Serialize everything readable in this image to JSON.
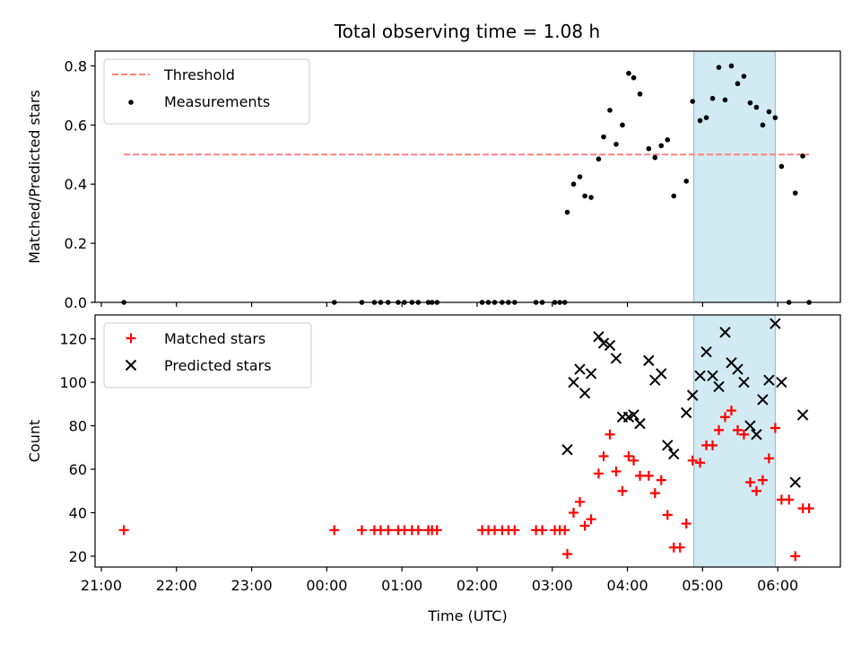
{
  "figure": {
    "title": "Total observing time = 1.08 h"
  },
  "chart_data": [
    {
      "type": "scatter",
      "ylabel": "Matched/Predicted stars",
      "ylim": [
        0,
        0.85
      ],
      "yticks": [
        "0.0",
        "0.2",
        "0.4",
        "0.6",
        "0.8"
      ],
      "ytick_values": [
        0,
        0.2,
        0.4,
        0.6,
        0.8
      ],
      "xlim": [
        "20:55",
        "06:50"
      ],
      "grid": false,
      "legend_position": "top-left",
      "threshold": {
        "name": "Threshold",
        "value": 0.5,
        "x_start": "21:18",
        "x_end": "06:25",
        "color": "#ff7f7f",
        "style": "dashed"
      },
      "highlight_span": {
        "x_start": "04:53",
        "x_end": "05:58",
        "color": "#add8e6"
      },
      "series": [
        {
          "name": "Measurements",
          "color": "#000000",
          "marker": "dot",
          "points": [
            [
              "21:18",
              0.0
            ],
            [
              "00:06",
              0.0
            ],
            [
              "00:28",
              0.0
            ],
            [
              "00:38",
              0.0
            ],
            [
              "00:43",
              0.0
            ],
            [
              "00:49",
              0.0
            ],
            [
              "00:57",
              0.0
            ],
            [
              "01:02",
              0.0
            ],
            [
              "01:08",
              0.0
            ],
            [
              "01:13",
              0.0
            ],
            [
              "01:21",
              0.0
            ],
            [
              "01:24",
              0.0
            ],
            [
              "01:28",
              0.0
            ],
            [
              "02:04",
              0.0
            ],
            [
              "02:09",
              0.0
            ],
            [
              "02:14",
              0.0
            ],
            [
              "02:20",
              0.0
            ],
            [
              "02:25",
              0.0
            ],
            [
              "02:30",
              0.0
            ],
            [
              "02:47",
              0.0
            ],
            [
              "02:52",
              0.0
            ],
            [
              "03:02",
              0.0
            ],
            [
              "03:06",
              0.0
            ],
            [
              "03:10",
              0.0
            ],
            [
              "03:12",
              0.305
            ],
            [
              "03:17",
              0.4
            ],
            [
              "03:22",
              0.425
            ],
            [
              "03:26",
              0.36
            ],
            [
              "03:31",
              0.355
            ],
            [
              "03:37",
              0.485
            ],
            [
              "03:41",
              0.56
            ],
            [
              "03:46",
              0.65
            ],
            [
              "03:51",
              0.535
            ],
            [
              "03:56",
              0.6
            ],
            [
              "04:01",
              0.775
            ],
            [
              "04:05",
              0.76
            ],
            [
              "04:10",
              0.705
            ],
            [
              "04:17",
              0.52
            ],
            [
              "04:22",
              0.49
            ],
            [
              "04:27",
              0.53
            ],
            [
              "04:32",
              0.55
            ],
            [
              "04:37",
              0.36
            ],
            [
              "04:47",
              0.41
            ],
            [
              "04:52",
              0.68
            ],
            [
              "04:58",
              0.615
            ],
            [
              "05:03",
              0.625
            ],
            [
              "05:08",
              0.69
            ],
            [
              "05:13",
              0.795
            ],
            [
              "05:18",
              0.685
            ],
            [
              "05:23",
              0.8
            ],
            [
              "05:28",
              0.74
            ],
            [
              "05:33",
              0.765
            ],
            [
              "05:38",
              0.675
            ],
            [
              "05:43",
              0.66
            ],
            [
              "05:48",
              0.6
            ],
            [
              "05:53",
              0.645
            ],
            [
              "05:58",
              0.625
            ],
            [
              "06:03",
              0.46
            ],
            [
              "06:09",
              0.0
            ],
            [
              "06:14",
              0.37
            ],
            [
              "06:20",
              0.495
            ],
            [
              "06:25",
              0.0
            ]
          ]
        }
      ]
    },
    {
      "type": "scatter",
      "ylabel": "Count",
      "xlabel": "Time (UTC)",
      "ylim": [
        15,
        131
      ],
      "yticks": [
        "20",
        "40",
        "60",
        "80",
        "100",
        "120"
      ],
      "ytick_values": [
        20,
        40,
        60,
        80,
        100,
        120
      ],
      "xlim": [
        "20:55",
        "06:50"
      ],
      "xticks": [
        "21:00",
        "22:00",
        "23:00",
        "00:00",
        "01:00",
        "02:00",
        "03:00",
        "04:00",
        "05:00",
        "06:00"
      ],
      "grid": false,
      "legend_position": "top-left",
      "highlight_span": {
        "x_start": "04:53",
        "x_end": "05:58",
        "color": "#add8e6"
      },
      "series": [
        {
          "name": "Matched stars",
          "color": "#ff0000",
          "marker": "plus",
          "points": [
            [
              "21:18",
              32
            ],
            [
              "00:06",
              32
            ],
            [
              "00:28",
              32
            ],
            [
              "00:38",
              32
            ],
            [
              "00:43",
              32
            ],
            [
              "00:49",
              32
            ],
            [
              "00:57",
              32
            ],
            [
              "01:02",
              32
            ],
            [
              "01:08",
              32
            ],
            [
              "01:13",
              32
            ],
            [
              "01:21",
              32
            ],
            [
              "01:24",
              32
            ],
            [
              "01:28",
              32
            ],
            [
              "02:04",
              32
            ],
            [
              "02:09",
              32
            ],
            [
              "02:14",
              32
            ],
            [
              "02:20",
              32
            ],
            [
              "02:25",
              32
            ],
            [
              "02:30",
              32
            ],
            [
              "02:47",
              32
            ],
            [
              "02:52",
              32
            ],
            [
              "03:02",
              32
            ],
            [
              "03:06",
              32
            ],
            [
              "03:10",
              32
            ],
            [
              "03:12",
              21
            ],
            [
              "03:17",
              40
            ],
            [
              "03:22",
              45
            ],
            [
              "03:26",
              34
            ],
            [
              "03:31",
              37
            ],
            [
              "03:37",
              58
            ],
            [
              "03:41",
              66
            ],
            [
              "03:46",
              76
            ],
            [
              "03:51",
              59
            ],
            [
              "03:56",
              50
            ],
            [
              "04:01",
              66
            ],
            [
              "04:05",
              64
            ],
            [
              "04:10",
              57
            ],
            [
              "04:17",
              57
            ],
            [
              "04:22",
              49
            ],
            [
              "04:27",
              55
            ],
            [
              "04:32",
              39
            ],
            [
              "04:37",
              24
            ],
            [
              "04:42",
              24
            ],
            [
              "04:47",
              35
            ],
            [
              "04:52",
              64
            ],
            [
              "04:58",
              63
            ],
            [
              "05:03",
              71
            ],
            [
              "05:08",
              71
            ],
            [
              "05:13",
              78
            ],
            [
              "05:18",
              84
            ],
            [
              "05:23",
              87
            ],
            [
              "05:28",
              78
            ],
            [
              "05:33",
              76
            ],
            [
              "05:38",
              54
            ],
            [
              "05:43",
              50
            ],
            [
              "05:48",
              55
            ],
            [
              "05:53",
              65
            ],
            [
              "05:58",
              79
            ],
            [
              "06:03",
              46
            ],
            [
              "06:09",
              46
            ],
            [
              "06:14",
              20
            ],
            [
              "06:20",
              42
            ],
            [
              "06:25",
              42
            ]
          ]
        },
        {
          "name": "Predicted stars",
          "color": "#000000",
          "marker": "x",
          "points": [
            [
              "03:12",
              69
            ],
            [
              "03:17",
              100
            ],
            [
              "03:22",
              106
            ],
            [
              "03:26",
              95
            ],
            [
              "03:31",
              104
            ],
            [
              "03:37",
              121
            ],
            [
              "03:41",
              118
            ],
            [
              "03:46",
              117
            ],
            [
              "03:51",
              111
            ],
            [
              "03:56",
              84
            ],
            [
              "04:01",
              84
            ],
            [
              "04:05",
              85
            ],
            [
              "04:10",
              81
            ],
            [
              "04:17",
              110
            ],
            [
              "04:22",
              101
            ],
            [
              "04:27",
              104
            ],
            [
              "04:32",
              71
            ],
            [
              "04:37",
              67
            ],
            [
              "04:47",
              86
            ],
            [
              "04:52",
              94
            ],
            [
              "04:58",
              103
            ],
            [
              "05:03",
              114
            ],
            [
              "05:08",
              103
            ],
            [
              "05:13",
              98
            ],
            [
              "05:18",
              123
            ],
            [
              "05:23",
              109
            ],
            [
              "05:28",
              106
            ],
            [
              "05:33",
              100
            ],
            [
              "05:38",
              80
            ],
            [
              "05:43",
              76
            ],
            [
              "05:48",
              92
            ],
            [
              "05:53",
              101
            ],
            [
              "05:58",
              127
            ],
            [
              "06:03",
              100
            ],
            [
              "06:14",
              54
            ],
            [
              "06:20",
              85
            ]
          ]
        }
      ]
    }
  ]
}
